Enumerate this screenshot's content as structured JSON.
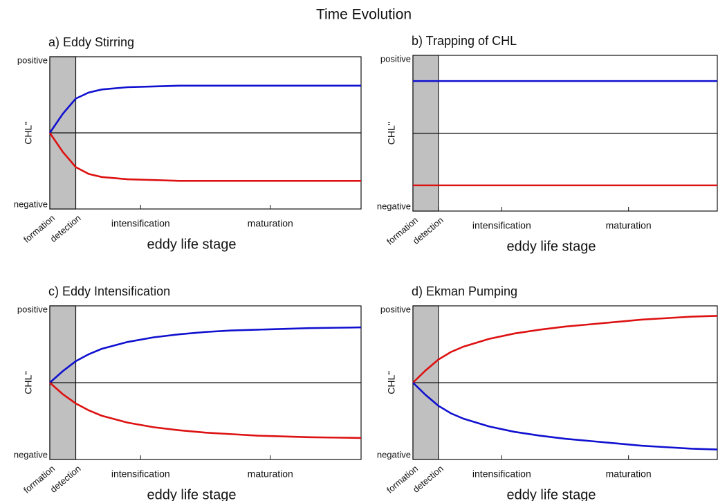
{
  "title": "Time Evolution",
  "chart_data": [
    {
      "type": "line",
      "title": "a) Eddy Stirring",
      "x_label": "eddy life stage",
      "y_label": "CHL''",
      "xlim": [
        0,
        12
      ],
      "ylim": [
        -1,
        1
      ],
      "xticks": [
        {
          "value": 0,
          "label": "formation"
        },
        {
          "value": 1,
          "label": "detection"
        },
        {
          "value": 3.5,
          "label": "intensification"
        },
        {
          "value": 8.5,
          "label": "maturation"
        }
      ],
      "yticks": [
        {
          "value": 1,
          "label": "positive"
        },
        {
          "value": -1,
          "label": "negative"
        }
      ],
      "shade": [
        0,
        1
      ],
      "hline": 0,
      "x": [
        0,
        0.5,
        1,
        1.5,
        2,
        3,
        4,
        5,
        6,
        7,
        8,
        9,
        10,
        11,
        12
      ],
      "series": [
        {
          "color": "#1010d0",
          "values": [
            0,
            0.25,
            0.45,
            0.53,
            0.57,
            0.6,
            0.61,
            0.62,
            0.62,
            0.62,
            0.62,
            0.62,
            0.62,
            0.62,
            0.62
          ]
        },
        {
          "color": "#dd1111",
          "values": [
            0,
            -0.25,
            -0.45,
            -0.54,
            -0.58,
            -0.61,
            -0.62,
            -0.63,
            -0.63,
            -0.63,
            -0.63,
            -0.63,
            -0.63,
            -0.63,
            -0.63
          ]
        }
      ]
    },
    {
      "type": "line",
      "title": "b) Trapping of CHL",
      "x_label": "eddy life stage",
      "y_label": "CHL''",
      "xlim": [
        0,
        12
      ],
      "ylim": [
        -1,
        1
      ],
      "xticks": [
        {
          "value": 0,
          "label": "formation"
        },
        {
          "value": 1,
          "label": "detection"
        },
        {
          "value": 3.5,
          "label": "intensification"
        },
        {
          "value": 8.5,
          "label": "maturation"
        }
      ],
      "yticks": [
        {
          "value": 1,
          "label": "positive"
        },
        {
          "value": -1,
          "label": "negative"
        }
      ],
      "shade": [
        0,
        1
      ],
      "hline": 0,
      "x": [
        0,
        12
      ],
      "series": [
        {
          "color": "#1010d0",
          "values": [
            0.67,
            0.67
          ]
        },
        {
          "color": "#dd1111",
          "values": [
            -0.67,
            -0.67
          ]
        }
      ]
    },
    {
      "type": "line",
      "title": "c) Eddy Intensification",
      "x_label": "eddy life stage",
      "y_label": "CHL''",
      "xlim": [
        0,
        12
      ],
      "ylim": [
        -1,
        1
      ],
      "xticks": [
        {
          "value": 0,
          "label": "formation"
        },
        {
          "value": 1,
          "label": "detection"
        },
        {
          "value": 3.5,
          "label": "intensification"
        },
        {
          "value": 8.5,
          "label": "maturation"
        }
      ],
      "yticks": [
        {
          "value": 1,
          "label": "positive"
        },
        {
          "value": -1,
          "label": "negative"
        }
      ],
      "shade": [
        0,
        1
      ],
      "hline": 0,
      "x": [
        0,
        0.5,
        1,
        1.5,
        2,
        3,
        4,
        5,
        6,
        7,
        8,
        9,
        10,
        11,
        12
      ],
      "series": [
        {
          "color": "#1010d0",
          "values": [
            0,
            0.15,
            0.28,
            0.37,
            0.44,
            0.53,
            0.59,
            0.63,
            0.66,
            0.68,
            0.69,
            0.7,
            0.71,
            0.715,
            0.72
          ]
        },
        {
          "color": "#dd1111",
          "values": [
            0,
            -0.15,
            -0.27,
            -0.36,
            -0.43,
            -0.52,
            -0.58,
            -0.62,
            -0.65,
            -0.67,
            -0.69,
            -0.7,
            -0.71,
            -0.715,
            -0.72
          ]
        }
      ]
    },
    {
      "type": "line",
      "title": "d) Ekman Pumping",
      "x_label": "eddy life stage",
      "y_label": "CHL''",
      "xlim": [
        0,
        12
      ],
      "ylim": [
        -1,
        1
      ],
      "xticks": [
        {
          "value": 0,
          "label": "formation"
        },
        {
          "value": 1,
          "label": "detection"
        },
        {
          "value": 3.5,
          "label": "intensification"
        },
        {
          "value": 8.5,
          "label": "maturation"
        }
      ],
      "yticks": [
        {
          "value": 1,
          "label": "positive"
        },
        {
          "value": -1,
          "label": "negative"
        }
      ],
      "shade": [
        0,
        1
      ],
      "hline": 0,
      "x": [
        0,
        0.5,
        1,
        1.5,
        2,
        3,
        4,
        5,
        6,
        7,
        8,
        9,
        10,
        11,
        12
      ],
      "series": [
        {
          "color": "#dd1111",
          "values": [
            0,
            0.16,
            0.3,
            0.4,
            0.47,
            0.57,
            0.64,
            0.69,
            0.73,
            0.76,
            0.79,
            0.82,
            0.84,
            0.86,
            0.87
          ]
        },
        {
          "color": "#1010d0",
          "values": [
            0,
            -0.16,
            -0.3,
            -0.4,
            -0.47,
            -0.57,
            -0.64,
            -0.69,
            -0.73,
            -0.76,
            -0.79,
            -0.82,
            -0.84,
            -0.86,
            -0.87
          ]
        }
      ]
    }
  ]
}
